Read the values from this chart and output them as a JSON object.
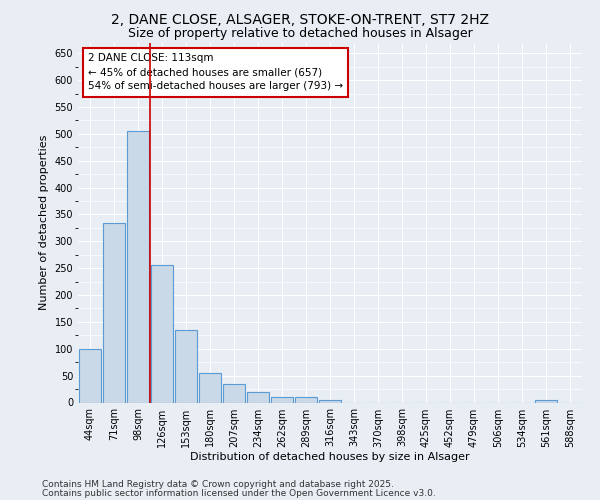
{
  "title_line1": "2, DANE CLOSE, ALSAGER, STOKE-ON-TRENT, ST7 2HZ",
  "title_line2": "Size of property relative to detached houses in Alsager",
  "xlabel": "Distribution of detached houses by size in Alsager",
  "ylabel": "Number of detached properties",
  "categories": [
    "44sqm",
    "71sqm",
    "98sqm",
    "126sqm",
    "153sqm",
    "180sqm",
    "207sqm",
    "234sqm",
    "262sqm",
    "289sqm",
    "316sqm",
    "343sqm",
    "370sqm",
    "398sqm",
    "425sqm",
    "452sqm",
    "479sqm",
    "506sqm",
    "534sqm",
    "561sqm",
    "588sqm"
  ],
  "values": [
    100,
    335,
    505,
    255,
    135,
    55,
    35,
    20,
    10,
    10,
    5,
    0,
    0,
    0,
    0,
    0,
    0,
    0,
    0,
    5,
    0
  ],
  "bar_color": "#c9d9e8",
  "bar_edge_color": "#5b9bd5",
  "vline_x": 2.5,
  "vline_color": "#cc0000",
  "annotation_text": "2 DANE CLOSE: 113sqm\n← 45% of detached houses are smaller (657)\n54% of semi-detached houses are larger (793) →",
  "annotation_box_color": "#ffffff",
  "annotation_box_edge": "#cc0000",
  "ylim": [
    0,
    670
  ],
  "yticks": [
    0,
    50,
    100,
    150,
    200,
    250,
    300,
    350,
    400,
    450,
    500,
    550,
    600,
    650
  ],
  "background_color": "#e8eef4",
  "plot_bg_color": "#e8eef4",
  "grid_color": "#ffffff",
  "footer_line1": "Contains HM Land Registry data © Crown copyright and database right 2025.",
  "footer_line2": "Contains public sector information licensed under the Open Government Licence v3.0.",
  "title_fontsize": 10,
  "subtitle_fontsize": 9,
  "axis_label_fontsize": 8,
  "tick_fontsize": 7,
  "annotation_fontsize": 7.5,
  "footer_fontsize": 6.5
}
